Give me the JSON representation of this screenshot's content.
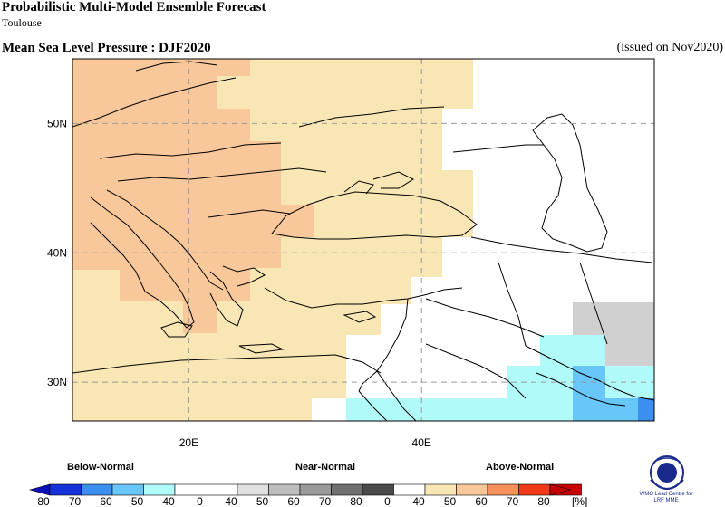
{
  "header": {
    "title": "Probabilistic Multi-Model Ensemble Forecast",
    "center": "Toulouse",
    "variable": "Mean Sea Level Pressure : DJF2020",
    "issued": "(issued on Nov2020)"
  },
  "map": {
    "lat_range": [
      27,
      55
    ],
    "lon_range": [
      10,
      60
    ],
    "lat_labels": [
      "50N",
      "40N",
      "30N"
    ],
    "lon_labels": [
      "20E",
      "40E"
    ],
    "colors": {
      "above_40_50": "#f8e6b4",
      "above_50_60": "#f8c89a",
      "below_40_50": "#b0fafa",
      "below_50_60": "#68c6f8",
      "below_60_70": "#3a8ff0",
      "near_40_50": "#d0d0d0"
    }
  },
  "legend": {
    "below_label": "Below-Normal",
    "near_label": "Near-Normal",
    "above_label": "Above-Normal",
    "ticks": [
      "80",
      "70",
      "60",
      "50",
      "40",
      "0",
      "40",
      "50",
      "60",
      "70",
      "80",
      "0",
      "40",
      "50",
      "60",
      "70",
      "80"
    ],
    "unit": "[%]",
    "below_colors": [
      "#1432d8",
      "#3a8ff0",
      "#68c6f8",
      "#b0fafa"
    ],
    "near_colors": [
      "#e0e0e0",
      "#bebebe",
      "#9a9a9a",
      "#707070",
      "#4a4a4a"
    ],
    "above_colors": [
      "#f8e6b4",
      "#f8c89a",
      "#f8905a",
      "#f03a18",
      "#c80000"
    ]
  },
  "logo": {
    "text": "WMO Lead Centre for LRF MME"
  }
}
